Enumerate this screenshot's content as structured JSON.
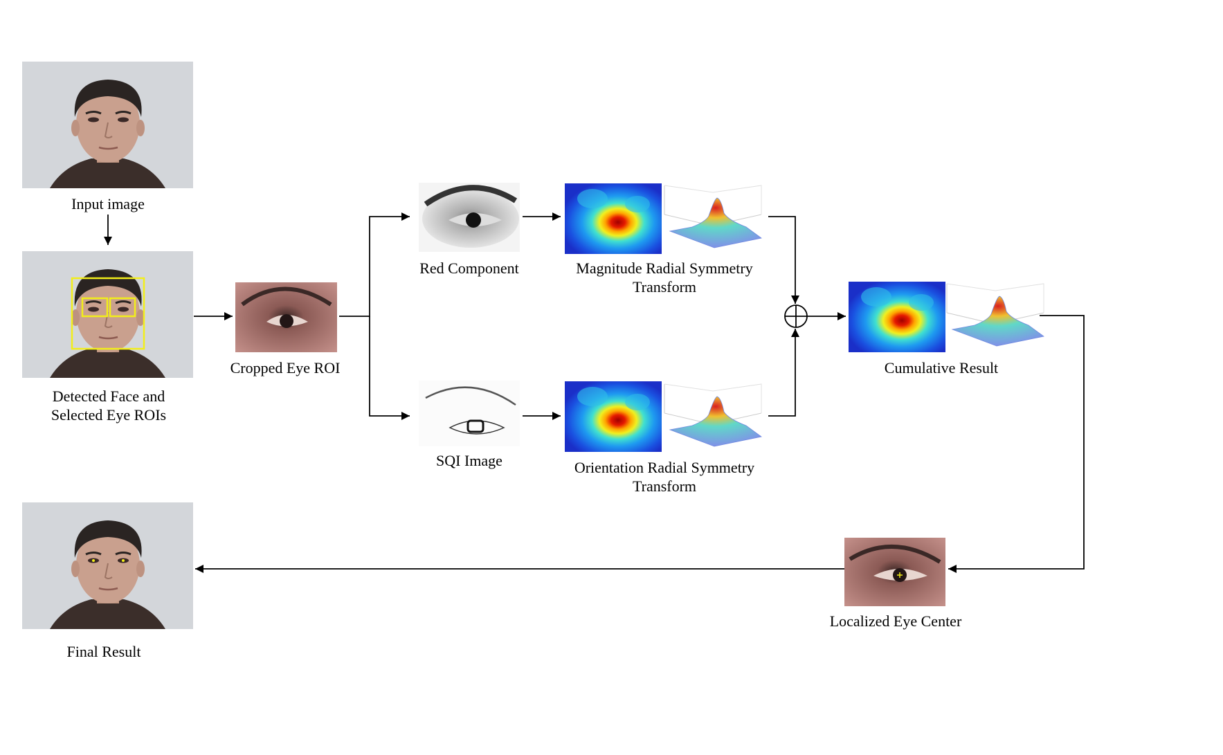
{
  "captions": {
    "input_image": "Input image",
    "detected_face_line1": "Detected Face and",
    "detected_face_line2": "Selected Eye ROIs",
    "cropped_eye": "Cropped Eye ROI",
    "red_component": "Red Component",
    "sqi_image": "SQI Image",
    "magnitude_line1": "Magnitude Radial Symmetry",
    "magnitude_line2": "Transform",
    "orientation_line1": "Orientation Radial Symmetry",
    "orientation_line2": "Transform",
    "cumulative": "Cumulative Result",
    "localized": "Localized Eye Center",
    "final": "Final Result"
  },
  "colors": {
    "photo_bg": "#d3d6da",
    "skin": "#c9a08e",
    "hair": "#2a2422",
    "shirt": "#3b2e2a",
    "detection_box": "#f2ee1a",
    "heatmap_low": "#1e36d8",
    "heatmap_high": "#b40000",
    "arrow": "#000000"
  }
}
